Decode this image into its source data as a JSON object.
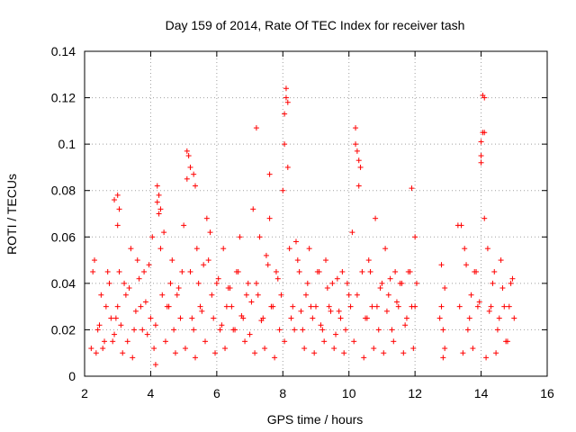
{
  "chart_data": {
    "type": "scatter",
    "title": "Day 159 of 2014, Rate Of TEC Index for receiver tash",
    "xlabel": "GPS time / hours",
    "ylabel": "ROTI / TECUs",
    "xlim": [
      2,
      16
    ],
    "ylim": [
      0,
      0.14
    ],
    "x_ticks": [
      2,
      4,
      6,
      8,
      10,
      12,
      14,
      16
    ],
    "x_tick_labels": [
      "2",
      "4",
      "6",
      "8",
      "10",
      "12",
      "14",
      "16"
    ],
    "y_ticks": [
      0,
      0.02,
      0.04,
      0.06,
      0.08,
      0.1,
      0.12,
      0.14
    ],
    "y_tick_labels": [
      "0",
      "0.02",
      "0.04",
      "0.06",
      "0.08",
      "0.1",
      "0.12",
      "0.14"
    ],
    "grid": true,
    "marker": "+",
    "marker_color": "#ff0000",
    "series": [
      {
        "name": "ROTI",
        "x": [
          2.2,
          2.3,
          2.4,
          2.5,
          2.6,
          2.7,
          2.8,
          2.9,
          3.0,
          3.0,
          3.1,
          3.2,
          3.3,
          3.4,
          3.5,
          3.6,
          3.7,
          3.8,
          3.9,
          4.0,
          4.05,
          4.2,
          4.25,
          4.3,
          4.4,
          4.5,
          4.6,
          4.7,
          4.8,
          4.9,
          5.0,
          5.1,
          5.15,
          5.2,
          5.3,
          5.4,
          5.5,
          5.6,
          5.7,
          5.8,
          5.9,
          6.0,
          6.1,
          6.2,
          6.3,
          6.4,
          6.5,
          6.6,
          6.7,
          6.8,
          6.9,
          7.0,
          7.1,
          7.2,
          7.3,
          7.4,
          7.5,
          7.6,
          7.7,
          7.8,
          7.9,
          8.0,
          8.05,
          8.1,
          8.15,
          8.2,
          8.3,
          8.4,
          8.5,
          8.6,
          8.7,
          8.8,
          8.9,
          9.0,
          9.1,
          9.2,
          9.3,
          9.4,
          9.5,
          9.6,
          9.7,
          9.8,
          9.9,
          10.0,
          10.1,
          10.2,
          10.3,
          10.35,
          10.4,
          10.5,
          10.6,
          10.7,
          10.8,
          10.9,
          11.0,
          11.1,
          11.2,
          11.3,
          11.4,
          11.5,
          11.6,
          11.7,
          11.8,
          11.9,
          12.0,
          12.05,
          12.8,
          12.8,
          12.85,
          12.9,
          13.3,
          13.4,
          13.5,
          13.6,
          13.7,
          13.8,
          13.9,
          14.0,
          14.05,
          14.1,
          14.2,
          14.3,
          14.4,
          14.5,
          14.6,
          14.7,
          14.8,
          14.9,
          15.0,
          2.25,
          2.55,
          2.85,
          3.15,
          3.45,
          3.75,
          4.1,
          4.45,
          4.75,
          5.05,
          5.35,
          5.65,
          5.95,
          6.25,
          6.55,
          6.85,
          7.15,
          7.45,
          7.75,
          8.05,
          8.35,
          8.65,
          8.95,
          9.25,
          9.55,
          9.85,
          10.15,
          10.45,
          10.75,
          11.05,
          11.35,
          11.65,
          11.95,
          12.85,
          13.45,
          13.75,
          14.15,
          14.45,
          14.75,
          2.35,
          2.65,
          2.95,
          3.25,
          3.55,
          3.85,
          4.15,
          4.55,
          4.85,
          5.25,
          5.55,
          5.85,
          6.15,
          6.45,
          6.75,
          7.05,
          7.35,
          7.65,
          7.95,
          8.25,
          8.55,
          8.85,
          9.15,
          9.45,
          9.75,
          10.05,
          10.25,
          10.55,
          10.85,
          11.15,
          11.45,
          11.75,
          12.0,
          12.75,
          13.35,
          13.65,
          13.95,
          14.25,
          14.55,
          14.85,
          2.45,
          2.75,
          3.05,
          3.35,
          3.65,
          3.95,
          4.35,
          4.65,
          4.95,
          5.45,
          5.75,
          6.05,
          6.35,
          6.65,
          6.95,
          7.25,
          7.55,
          7.85,
          8.45,
          8.75,
          9.05,
          9.35,
          9.65,
          9.95,
          10.65,
          10.95,
          11.25,
          11.55,
          11.85,
          12.9,
          13.55,
          13.85,
          14.35,
          14.65,
          14.95,
          4.2,
          4.25,
          4.3,
          5.1,
          5.2,
          5.3,
          5.35,
          7.2,
          7.6,
          8.05,
          8.1,
          8.15,
          10.2,
          10.25,
          10.3,
          14.0,
          14.05,
          14.1,
          14.0,
          14.1,
          3.0,
          3.05,
          11.9,
          2.9,
          4.15
        ],
        "y": [
          0.012,
          0.05,
          0.02,
          0.035,
          0.015,
          0.045,
          0.025,
          0.018,
          0.065,
          0.03,
          0.022,
          0.04,
          0.015,
          0.055,
          0.02,
          0.05,
          0.03,
          0.045,
          0.018,
          0.025,
          0.06,
          0.075,
          0.07,
          0.055,
          0.062,
          0.03,
          0.04,
          0.02,
          0.035,
          0.025,
          0.065,
          0.085,
          0.095,
          0.045,
          0.02,
          0.055,
          0.03,
          0.048,
          0.068,
          0.062,
          0.025,
          0.04,
          0.02,
          0.055,
          0.03,
          0.038,
          0.02,
          0.045,
          0.06,
          0.025,
          0.035,
          0.018,
          0.072,
          0.04,
          0.06,
          0.025,
          0.052,
          0.068,
          0.03,
          0.045,
          0.02,
          0.08,
          0.1,
          0.12,
          0.09,
          0.055,
          0.03,
          0.058,
          0.045,
          0.02,
          0.035,
          0.055,
          0.025,
          0.03,
          0.045,
          0.02,
          0.05,
          0.03,
          0.04,
          0.018,
          0.028,
          0.045,
          0.02,
          0.035,
          0.062,
          0.1,
          0.082,
          0.09,
          0.045,
          0.025,
          0.05,
          0.03,
          0.068,
          0.02,
          0.04,
          0.055,
          0.035,
          0.02,
          0.045,
          0.03,
          0.04,
          0.022,
          0.045,
          0.03,
          0.06,
          0.04,
          0.048,
          0.03,
          0.02,
          0.012,
          0.065,
          0.065,
          0.055,
          0.02,
          0.035,
          0.045,
          0.03,
          0.095,
          0.105,
          0.068,
          0.055,
          0.03,
          0.045,
          0.02,
          0.05,
          0.03,
          0.015,
          0.04,
          0.025,
          0.045,
          0.012,
          0.015,
          0.01,
          0.008,
          0.02,
          0.012,
          0.015,
          0.01,
          0.012,
          0.008,
          0.015,
          0.01,
          0.012,
          0.02,
          0.015,
          0.01,
          0.012,
          0.008,
          0.015,
          0.02,
          0.012,
          0.01,
          0.015,
          0.012,
          0.01,
          0.015,
          0.008,
          0.012,
          0.01,
          0.015,
          0.01,
          0.012,
          0.008,
          0.01,
          0.012,
          0.008,
          0.01,
          0.015,
          0.01,
          0.03,
          0.025,
          0.035,
          0.028,
          0.032,
          0.022,
          0.03,
          0.038,
          0.025,
          0.028,
          0.035,
          0.022,
          0.03,
          0.026,
          0.032,
          0.024,
          0.03,
          0.035,
          0.025,
          0.028,
          0.03,
          0.022,
          0.028,
          0.025,
          0.03,
          0.035,
          0.025,
          0.03,
          0.028,
          0.032,
          0.025,
          0.03,
          0.025,
          0.03,
          0.025,
          0.032,
          0.028,
          0.025,
          0.03,
          0.022,
          0.04,
          0.045,
          0.038,
          0.042,
          0.048,
          0.035,
          0.05,
          0.045,
          0.04,
          0.05,
          0.042,
          0.038,
          0.045,
          0.04,
          0.035,
          0.048,
          0.042,
          0.05,
          0.04,
          0.045,
          0.038,
          0.042,
          0.04,
          0.045,
          0.038,
          0.042,
          0.04,
          0.045,
          0.038,
          0.048,
          0.045,
          0.04,
          0.038,
          0.042,
          0.082,
          0.078,
          0.072,
          0.097,
          0.09,
          0.087,
          0.082,
          0.107,
          0.087,
          0.113,
          0.124,
          0.118,
          0.107,
          0.097,
          0.093,
          0.101,
          0.121,
          0.105,
          0.092,
          0.12,
          0.078,
          0.072,
          0.081,
          0.076,
          0.005
        ]
      }
    ]
  }
}
